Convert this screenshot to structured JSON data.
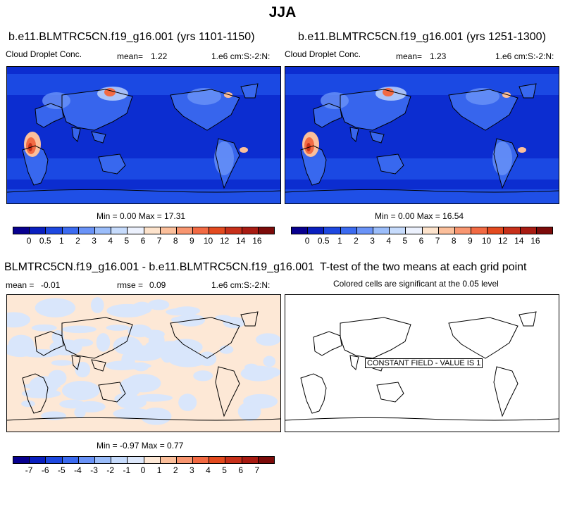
{
  "title": "JJA",
  "panels": [
    {
      "title": "b.e11.BLMTRC5CN.f19_g16.001 (yrs 1101-1150)",
      "left_label": "Cloud Droplet Conc.",
      "mean_label": "mean=",
      "mean_value": "1.22",
      "right_label": "1.e6 cm:S:-2:N:",
      "minmax": "Min =  0.00 Max =  17.31"
    },
    {
      "title": "b.e11.BLMTRC5CN.f19_g16.001 (yrs 1251-1300)",
      "left_label": "Cloud Droplet Conc.",
      "mean_label": "mean=",
      "mean_value": "1.23",
      "right_label": "1.e6 cm:S:-2:N:",
      "minmax": "Min =  0.00 Max =  16.54"
    },
    {
      "title": "BLMTRC5CN.f19_g16.001 - b.e11.BLMTRC5CN.f19_g16.001",
      "mean_label": "mean =",
      "mean_value": "-0.01",
      "rmse_label": "rmse =",
      "rmse_value": "0.09",
      "right_label": "1.e6 cm:S:-2:N:",
      "minmax": "Min = -0.97 Max =  0.77"
    },
    {
      "title": "T-test of the two means at each grid point",
      "subtitle": "Colored cells are significant at the 0.05 level",
      "constant_label": "CONSTANT FIELD - VALUE IS 1"
    }
  ],
  "colorbars": {
    "concentration": {
      "labels": [
        "0",
        "0.5",
        "1",
        "2",
        "3",
        "4",
        "5",
        "6",
        "7",
        "8",
        "9",
        "10",
        "12",
        "14",
        "16"
      ],
      "colors": [
        "#08008f",
        "#0a1fbf",
        "#1e48e0",
        "#3c6bf0",
        "#6a93f7",
        "#9bbdfa",
        "#c6dbfc",
        "#ecf1fd",
        "#fde3cc",
        "#fbbf9b",
        "#f89670",
        "#f26a43",
        "#e34a1f",
        "#c7301a",
        "#a81b12",
        "#7c0b0a"
      ]
    },
    "difference": {
      "labels": [
        "-7",
        "-6",
        "-5",
        "-4",
        "-3",
        "-2",
        "-1",
        "0",
        "1",
        "2",
        "3",
        "4",
        "5",
        "6",
        "7"
      ],
      "colors": [
        "#08008f",
        "#0a1fbf",
        "#1e48e0",
        "#3c6bf0",
        "#6a93f7",
        "#9bbdfa",
        "#c6dbfc",
        "#dde8fb",
        "#fde8d6",
        "#fbbf9b",
        "#f89670",
        "#f26a43",
        "#e34a1f",
        "#c7301a",
        "#a81b12",
        "#7c0b0a"
      ]
    }
  },
  "map_colors": {
    "ocean_base": "#0c2dd0",
    "ocean_mid": "#1f4fe6",
    "land_low": "#3c6bf0",
    "land_mid": "#6a93f7",
    "land_high": "#c6dbfc",
    "hot_1": "#fbbf9b",
    "hot_2": "#f26a43",
    "hot_3": "#c7301a",
    "diff_pos": "#fde8d6",
    "diff_neg": "#d9e6fb",
    "coast": "#000000"
  },
  "chart_data": [
    {
      "type": "heatmap",
      "title": "b.e11.BLMTRC5CN.f19_g16.001 (yrs 1101-1150)",
      "variable": "Cloud Droplet Conc.",
      "units": "1.e6 cm:S:-2:N:",
      "mean": 1.22,
      "min": 0.0,
      "max": 17.31,
      "levels": [
        0,
        0.5,
        1,
        2,
        3,
        4,
        5,
        6,
        7,
        8,
        9,
        10,
        12,
        14,
        16
      ]
    },
    {
      "type": "heatmap",
      "title": "b.e11.BLMTRC5CN.f19_g16.001 (yrs 1251-1300)",
      "variable": "Cloud Droplet Conc.",
      "units": "1.e6 cm:S:-2:N:",
      "mean": 1.23,
      "min": 0.0,
      "max": 16.54,
      "levels": [
        0,
        0.5,
        1,
        2,
        3,
        4,
        5,
        6,
        7,
        8,
        9,
        10,
        12,
        14,
        16
      ]
    },
    {
      "type": "heatmap",
      "title": "BLMTRC5CN.f19_g16.001 - b.e11.BLMTRC5CN.f19_g16.001",
      "units": "1.e6 cm:S:-2:N:",
      "mean": -0.01,
      "rmse": 0.09,
      "min": -0.97,
      "max": 0.77,
      "levels": [
        -7,
        -6,
        -5,
        -4,
        -3,
        -2,
        -1,
        0,
        1,
        2,
        3,
        4,
        5,
        6,
        7
      ]
    },
    {
      "type": "heatmap",
      "title": "T-test of the two means at each grid point",
      "subtitle": "Colored cells are significant at the 0.05 level",
      "constant_value": 1
    }
  ]
}
